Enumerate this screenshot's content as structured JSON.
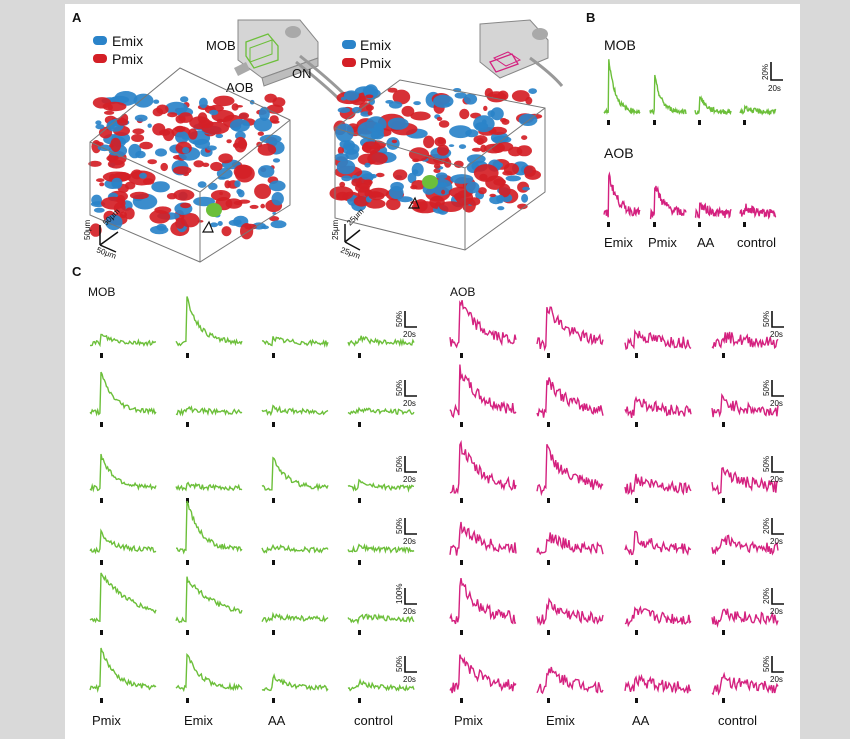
{
  "colors": {
    "green": "#6cbf3a",
    "magenta": "#d4217f",
    "emix": "#2a83c9",
    "pmix": "#d41f26",
    "frame": "#ffffff",
    "background": "#d9d9d9"
  },
  "panel_a": {
    "label": "A",
    "left": {
      "legend": [
        "Emix",
        "Pmix"
      ],
      "inset": [
        "MOB",
        "AOB",
        "ON"
      ],
      "scale": [
        "50μm",
        "50μm",
        "50μm"
      ]
    },
    "right": {
      "legend": [
        "Emix",
        "Pmix"
      ],
      "scale": [
        "25μm",
        "25μm",
        "25μm"
      ]
    }
  },
  "panel_b": {
    "label": "B",
    "rows": [
      {
        "name": "MOB",
        "color": "green",
        "scale_y": "20%",
        "scale_x": "20s"
      },
      {
        "name": "AOB",
        "color": "magenta"
      }
    ],
    "stimuli": [
      "Emix",
      "Pmix",
      "AA",
      "control"
    ]
  },
  "panel_c": {
    "label": "C",
    "mob": {
      "title": "MOB",
      "stimuli": [
        "Pmix",
        "Emix",
        "AA",
        "control"
      ],
      "scales": [
        {
          "y": "50%",
          "x": "20s"
        },
        {
          "y": "50%",
          "x": "20s"
        },
        {
          "y": "50%",
          "x": "20s"
        },
        {
          "y": "50%",
          "x": "20s"
        },
        {
          "y": "100%",
          "x": "20s"
        },
        {
          "y": "50%",
          "x": "20s"
        }
      ]
    },
    "aob": {
      "title": "AOB",
      "stimuli": [
        "Pmix",
        "Emix",
        "AA",
        "control"
      ],
      "scales": [
        {
          "y": "50%",
          "x": "20s"
        },
        {
          "y": "50%",
          "x": "20s"
        },
        {
          "y": "50%",
          "x": "20s"
        },
        {
          "y": "20%",
          "x": "20s"
        },
        {
          "y": "20%",
          "x": "20s"
        },
        {
          "y": "50%",
          "x": "20s"
        }
      ]
    }
  }
}
